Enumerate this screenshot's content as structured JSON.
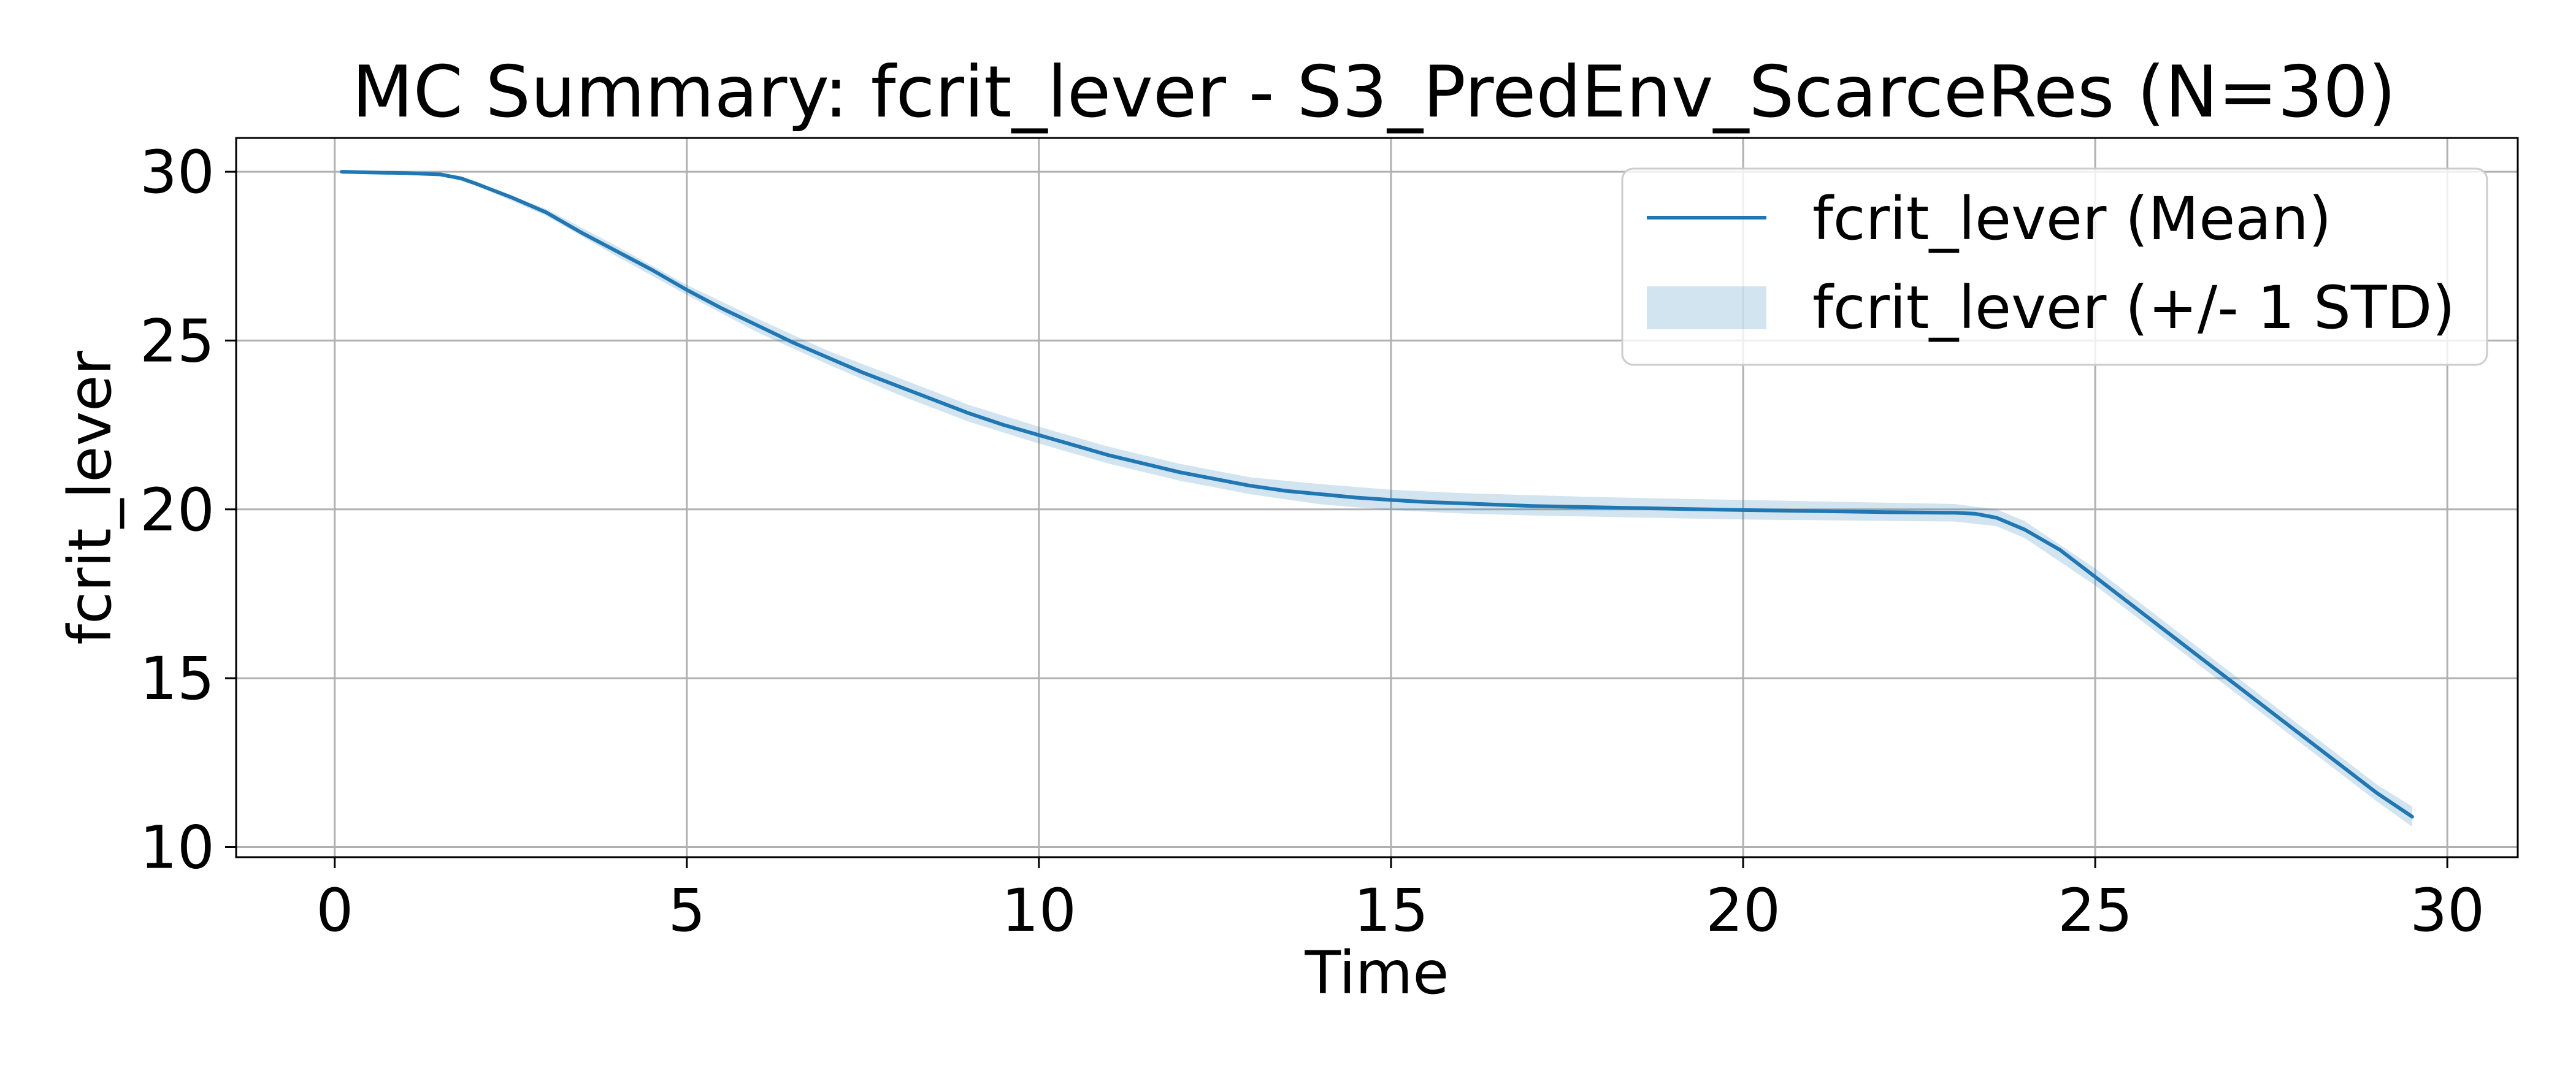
{
  "chart_data": {
    "type": "line",
    "title": "MC Summary: fcrit_lever - S3_PredEnv_ScarceRes (N=30)",
    "xlabel": "Time",
    "ylabel": "fcrit_lever",
    "xlim": [
      -1.4,
      31.0
    ],
    "ylim": [
      9.7,
      31.0
    ],
    "xticks": [
      0,
      5,
      10,
      15,
      20,
      25,
      30
    ],
    "yticks": [
      10,
      15,
      20,
      25,
      30
    ],
    "grid": true,
    "legend_position": "top-right",
    "colors": {
      "line": "#1f77b4",
      "band": "#1f77b4"
    },
    "series": [
      {
        "name": "fcrit_lever (Mean)",
        "kind": "line",
        "x": [
          0.1,
          0.5,
          1.0,
          1.5,
          1.8,
          2.0,
          2.5,
          3.0,
          3.5,
          4.0,
          4.5,
          5.0,
          5.5,
          6.0,
          6.5,
          7.0,
          7.5,
          8.0,
          8.5,
          9.0,
          9.5,
          10.0,
          10.5,
          11.0,
          11.5,
          12.0,
          12.5,
          13.0,
          13.5,
          14.0,
          14.5,
          15.0,
          15.5,
          16.0,
          16.5,
          17.0,
          18.0,
          19.0,
          20.0,
          21.0,
          22.0,
          23.0,
          23.3,
          23.6,
          24.0,
          24.5,
          25.0,
          25.5,
          26.0,
          26.5,
          27.0,
          27.5,
          28.0,
          28.5,
          29.0,
          29.5
        ],
        "y": [
          30.0,
          29.98,
          29.96,
          29.92,
          29.8,
          29.65,
          29.25,
          28.8,
          28.2,
          27.65,
          27.1,
          26.5,
          25.95,
          25.45,
          24.95,
          24.5,
          24.05,
          23.65,
          23.25,
          22.85,
          22.5,
          22.2,
          21.9,
          21.6,
          21.35,
          21.1,
          20.9,
          20.7,
          20.55,
          20.45,
          20.35,
          20.28,
          20.22,
          20.18,
          20.14,
          20.1,
          20.06,
          20.02,
          19.98,
          19.95,
          19.92,
          19.9,
          19.87,
          19.75,
          19.4,
          18.8,
          18.0,
          17.2,
          16.4,
          15.6,
          14.8,
          14.0,
          13.2,
          12.4,
          11.6,
          10.9
        ]
      },
      {
        "name": "fcrit_lever (+/- 1 STD)",
        "kind": "band",
        "x": [
          0.1,
          1.5,
          2.0,
          3.0,
          4.0,
          5.0,
          6.0,
          7.0,
          8.0,
          9.0,
          10.0,
          11.0,
          12.0,
          13.0,
          14.0,
          15.0,
          16.0,
          17.0,
          18.0,
          19.0,
          20.0,
          21.0,
          22.0,
          23.0,
          23.6,
          24.0,
          25.0,
          26.0,
          27.0,
          28.0,
          29.0,
          29.5
        ],
        "lower": [
          29.98,
          29.9,
          29.6,
          28.7,
          27.5,
          26.35,
          25.25,
          24.3,
          23.4,
          22.6,
          21.95,
          21.35,
          20.85,
          20.45,
          20.15,
          19.98,
          19.88,
          19.82,
          19.78,
          19.74,
          19.7,
          19.68,
          19.66,
          19.64,
          19.5,
          19.15,
          17.75,
          16.15,
          14.55,
          12.95,
          11.35,
          10.6
        ],
        "upper": [
          30.02,
          29.94,
          29.7,
          28.9,
          27.8,
          26.65,
          25.65,
          24.7,
          23.9,
          23.1,
          22.45,
          21.85,
          21.35,
          20.95,
          20.75,
          20.58,
          20.48,
          20.42,
          20.36,
          20.32,
          20.28,
          20.24,
          20.2,
          20.16,
          20.0,
          19.65,
          18.25,
          16.65,
          15.05,
          13.45,
          11.85,
          11.2
        ]
      }
    ]
  }
}
